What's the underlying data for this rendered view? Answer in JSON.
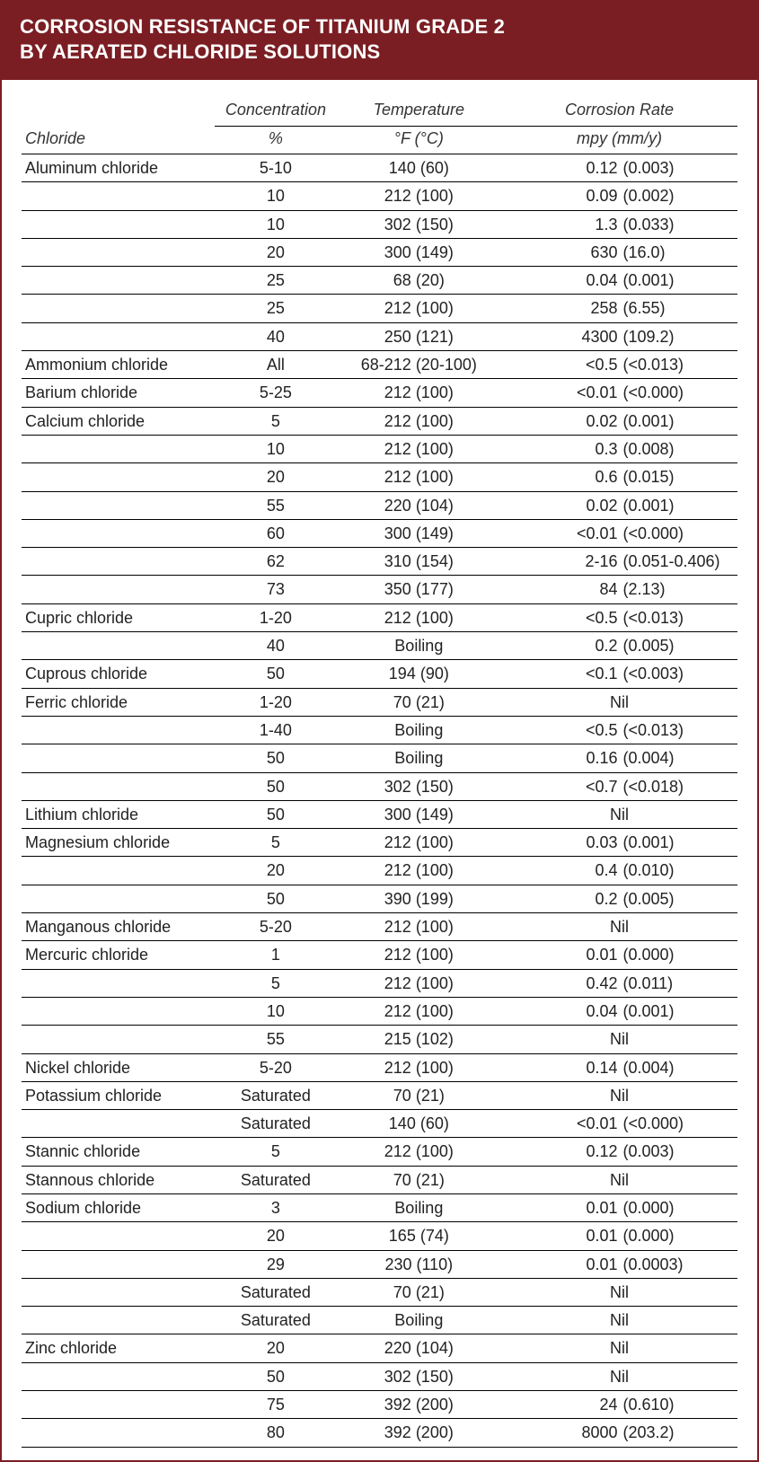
{
  "title_line1": "CORROSION RESISTANCE OF TITANIUM GRADE 2",
  "title_line2": "BY AERATED CHLORIDE SOLUTIONS",
  "colors": {
    "header_bg": "#7a1e23",
    "header_text": "#ffffff",
    "border": "#7a1e23",
    "row_border": "#000000",
    "text": "#222222",
    "page_bg": "#ffffff"
  },
  "typography": {
    "title_fontsize_pt": 16,
    "title_weight": 600,
    "header_fontsize_pt": 13,
    "header_style": "italic",
    "cell_fontsize_pt": 13
  },
  "columns": {
    "chloride": "Chloride",
    "concentration_l1": "Concentration",
    "concentration_l2": "%",
    "temperature_l1": "Temperature",
    "temperature_l2": "°F (°C)",
    "rate_l1": "Corrosion Rate",
    "rate_l2": "mpy (mm/y)"
  },
  "rows": [
    {
      "chloride": "Aluminum chloride",
      "conc": "5-10",
      "temp": "140 (60)",
      "mpy": "0.12",
      "mm": "(0.003)"
    },
    {
      "chloride": "",
      "conc": "10",
      "temp": "212 (100)",
      "mpy": "0.09",
      "mm": "(0.002)"
    },
    {
      "chloride": "",
      "conc": "10",
      "temp": "302 (150)",
      "mpy": "1.3",
      "mm": "(0.033)"
    },
    {
      "chloride": "",
      "conc": "20",
      "temp": "300 (149)",
      "mpy": "630",
      "mm": "(16.0)"
    },
    {
      "chloride": "",
      "conc": "25",
      "temp": "68 (20)",
      "mpy": "0.04",
      "mm": "(0.001)"
    },
    {
      "chloride": "",
      "conc": "25",
      "temp": "212 (100)",
      "mpy": "258",
      "mm": "(6.55)"
    },
    {
      "chloride": "",
      "conc": "40",
      "temp": "250 (121)",
      "mpy": "4300",
      "mm": "(109.2)"
    },
    {
      "chloride": "Ammonium chloride",
      "conc": "All",
      "temp": "68-212 (20-100)",
      "mpy": "<0.5",
      "mm": "(<0.013)"
    },
    {
      "chloride": "Barium chloride",
      "conc": "5-25",
      "temp": "212 (100)",
      "mpy": "<0.01",
      "mm": "(<0.000)"
    },
    {
      "chloride": "Calcium chloride",
      "conc": "5",
      "temp": "212 (100)",
      "mpy": "0.02",
      "mm": "(0.001)"
    },
    {
      "chloride": "",
      "conc": "10",
      "temp": "212 (100)",
      "mpy": "0.3",
      "mm": "(0.008)"
    },
    {
      "chloride": "",
      "conc": "20",
      "temp": "212 (100)",
      "mpy": "0.6",
      "mm": "(0.015)"
    },
    {
      "chloride": "",
      "conc": "55",
      "temp": "220 (104)",
      "mpy": "0.02",
      "mm": "(0.001)"
    },
    {
      "chloride": "",
      "conc": "60",
      "temp": "300 (149)",
      "mpy": "<0.01",
      "mm": "(<0.000)"
    },
    {
      "chloride": "",
      "conc": "62",
      "temp": "310 (154)",
      "mpy": "2-16",
      "mm": "(0.051-0.406)"
    },
    {
      "chloride": "",
      "conc": "73",
      "temp": "350 (177)",
      "mpy": "84",
      "mm": "(2.13)"
    },
    {
      "chloride": "Cupric chloride",
      "conc": "1-20",
      "temp": "212 (100)",
      "mpy": "<0.5",
      "mm": "(<0.013)"
    },
    {
      "chloride": "",
      "conc": "40",
      "temp": "Boiling",
      "mpy": "0.2",
      "mm": "(0.005)"
    },
    {
      "chloride": "Cuprous chloride",
      "conc": "50",
      "temp": "194 (90)",
      "mpy": "<0.1",
      "mm": "(<0.003)"
    },
    {
      "chloride": "Ferric chloride",
      "conc": "1-20",
      "temp": "70 (21)",
      "rate_center": "Nil"
    },
    {
      "chloride": "",
      "conc": "1-40",
      "temp": "Boiling",
      "mpy": "<0.5",
      "mm": "(<0.013)"
    },
    {
      "chloride": "",
      "conc": "50",
      "temp": "Boiling",
      "mpy": "0.16",
      "mm": "(0.004)"
    },
    {
      "chloride": "",
      "conc": "50",
      "temp": "302 (150)",
      "mpy": "<0.7",
      "mm": "(<0.018)"
    },
    {
      "chloride": "Lithium chloride",
      "conc": "50",
      "temp": "300 (149)",
      "rate_center": "Nil"
    },
    {
      "chloride": "Magnesium chloride",
      "conc": "5",
      "temp": "212 (100)",
      "mpy": "0.03",
      "mm": "(0.001)"
    },
    {
      "chloride": "",
      "conc": "20",
      "temp": "212 (100)",
      "mpy": "0.4",
      "mm": "(0.010)"
    },
    {
      "chloride": "",
      "conc": "50",
      "temp": "390 (199)",
      "mpy": "0.2",
      "mm": "(0.005)"
    },
    {
      "chloride": "Manganous chloride",
      "conc": "5-20",
      "temp": "212 (100)",
      "rate_center": "Nil"
    },
    {
      "chloride": "Mercuric chloride",
      "conc": "1",
      "temp": "212 (100)",
      "mpy": "0.01",
      "mm": "(0.000)"
    },
    {
      "chloride": "",
      "conc": "5",
      "temp": "212 (100)",
      "mpy": "0.42",
      "mm": "(0.011)"
    },
    {
      "chloride": "",
      "conc": "10",
      "temp": "212 (100)",
      "mpy": "0.04",
      "mm": "(0.001)"
    },
    {
      "chloride": "",
      "conc": "55",
      "temp": "215 (102)",
      "rate_center": "Nil"
    },
    {
      "chloride": "Nickel chloride",
      "conc": "5-20",
      "temp": "212 (100)",
      "mpy": "0.14",
      "mm": "(0.004)"
    },
    {
      "chloride": "Potassium chloride",
      "conc": "Saturated",
      "temp": "70 (21)",
      "rate_center": "Nil"
    },
    {
      "chloride": "",
      "conc": "Saturated",
      "temp": "140 (60)",
      "mpy": "<0.01",
      "mm": "(<0.000)"
    },
    {
      "chloride": "Stannic chloride",
      "conc": "5",
      "temp": "212 (100)",
      "mpy": "0.12",
      "mm": "(0.003)"
    },
    {
      "chloride": "Stannous chloride",
      "conc": "Saturated",
      "temp": "70 (21)",
      "rate_center": "Nil"
    },
    {
      "chloride": "Sodium chloride",
      "conc": "3",
      "temp": "Boiling",
      "mpy": "0.01",
      "mm": "(0.000)"
    },
    {
      "chloride": "",
      "conc": "20",
      "temp": "165 (74)",
      "mpy": "0.01",
      "mm": "(0.000)"
    },
    {
      "chloride": "",
      "conc": "29",
      "temp": "230 (110)",
      "mpy": "0.01",
      "mm": "(0.0003)"
    },
    {
      "chloride": "",
      "conc": "Saturated",
      "temp": "70 (21)",
      "rate_center": "Nil"
    },
    {
      "chloride": "",
      "conc": "Saturated",
      "temp": "Boiling",
      "rate_center": "Nil"
    },
    {
      "chloride": "Zinc chloride",
      "conc": "20",
      "temp": "220 (104)",
      "rate_center": "Nil"
    },
    {
      "chloride": "",
      "conc": "50",
      "temp": "302 (150)",
      "rate_center": "Nil"
    },
    {
      "chloride": "",
      "conc": "75",
      "temp": "392 (200)",
      "mpy": "24",
      "mm": "(0.610)"
    },
    {
      "chloride": "",
      "conc": "80",
      "temp": "392 (200)",
      "mpy": "8000",
      "mm": "(203.2)"
    }
  ]
}
